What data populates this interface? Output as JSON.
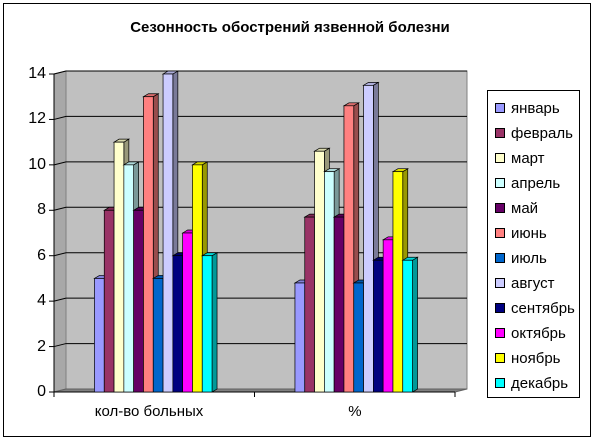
{
  "chart_data": {
    "type": "bar",
    "title": "Сезонность обострений язвенной болезни",
    "xlabel": "",
    "ylabel": "",
    "ylim": [
      0,
      14
    ],
    "yticks": [
      "0",
      "2",
      "4",
      "6",
      "8",
      "10",
      "12",
      "14"
    ],
    "grid": true,
    "legend_position": "right",
    "categories": [
      "кол-во больных",
      "%"
    ],
    "series": [
      {
        "name": "январь",
        "color": "#9999ff",
        "values": [
          5,
          4.8
        ]
      },
      {
        "name": "февраль",
        "color": "#993366",
        "values": [
          8,
          7.7
        ]
      },
      {
        "name": "март",
        "color": "#ffffcc",
        "values": [
          11,
          10.6
        ]
      },
      {
        "name": "апрель",
        "color": "#ccffff",
        "values": [
          10,
          9.7
        ]
      },
      {
        "name": "май",
        "color": "#660066",
        "values": [
          8,
          7.7
        ]
      },
      {
        "name": "июнь",
        "color": "#ff8080",
        "values": [
          13,
          12.6
        ]
      },
      {
        "name": "июль",
        "color": "#0066cc",
        "values": [
          5,
          4.8
        ]
      },
      {
        "name": "август",
        "color": "#ccccff",
        "values": [
          14,
          13.5
        ]
      },
      {
        "name": "сентябрь",
        "color": "#000080",
        "values": [
          6,
          5.8
        ]
      },
      {
        "name": "октябрь",
        "color": "#ff00ff",
        "values": [
          7,
          6.7
        ]
      },
      {
        "name": "ноябрь",
        "color": "#ffff00",
        "values": [
          10,
          9.7
        ]
      },
      {
        "name": "декабрь",
        "color": "#00ffff",
        "values": [
          6,
          5.8
        ]
      }
    ]
  }
}
